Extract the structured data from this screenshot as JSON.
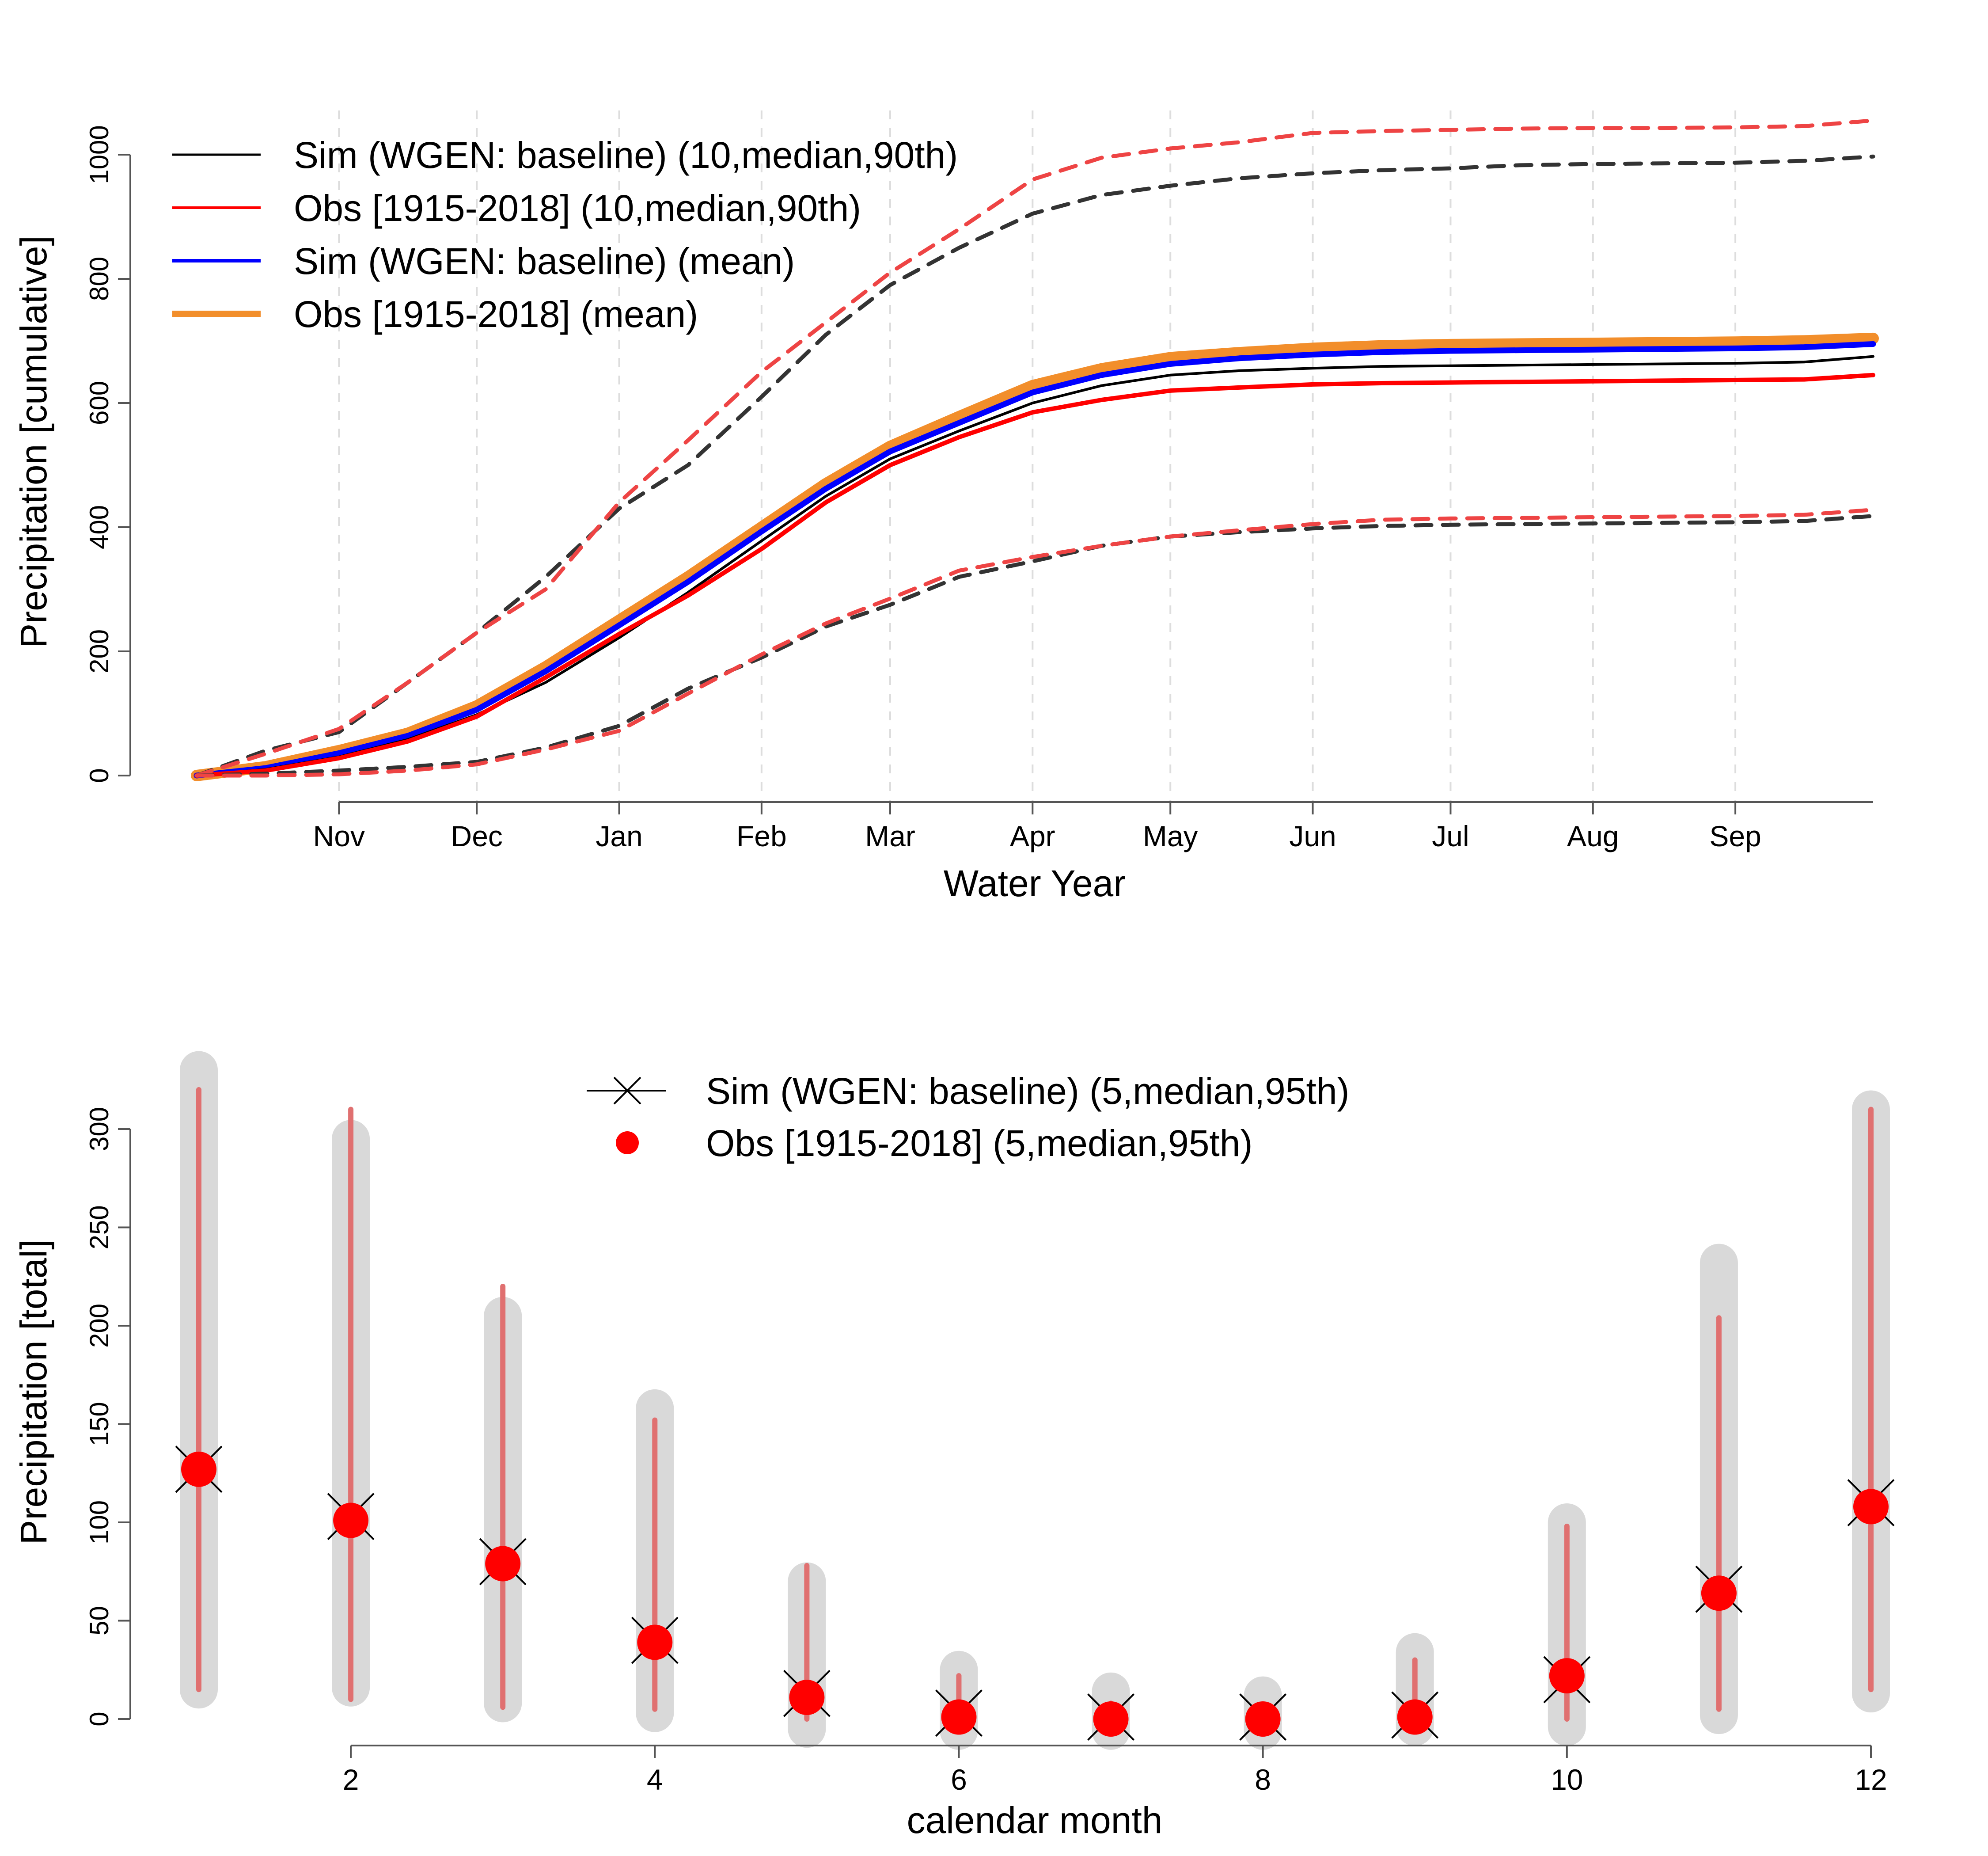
{
  "colors": {
    "sim": "#000000",
    "obs": "#ff0000",
    "sim_mean": "#0000ff",
    "obs_mean": "#f28e2b",
    "sim_dashed": "#333333",
    "obs_dashed": "#ee4444",
    "range_grey": "#d9d9d9",
    "obs_range": "#e07070",
    "grid": "#dddddd"
  },
  "chart_data": [
    {
      "type": "line",
      "xlabel": "Water Year",
      "ylabel": "Precipitation [cumulative]",
      "ylim": [
        0,
        1000
      ],
      "y_ticks": [
        0,
        200,
        400,
        600,
        800,
        1000
      ],
      "xlim": [
        0,
        365
      ],
      "x_ticks": [
        {
          "label": "Nov",
          "day": 31
        },
        {
          "label": "Dec",
          "day": 61
        },
        {
          "label": "Jan",
          "day": 92
        },
        {
          "label": "Feb",
          "day": 123
        },
        {
          "label": "Mar",
          "day": 151
        },
        {
          "label": "Apr",
          "day": 182
        },
        {
          "label": "May",
          "day": 212
        },
        {
          "label": "Jun",
          "day": 243
        },
        {
          "label": "Jul",
          "day": 273
        },
        {
          "label": "Aug",
          "day": 304
        },
        {
          "label": "Sep",
          "day": 335
        }
      ],
      "grid": "vertical dashed at month starts",
      "legend_position": "top-left",
      "legend": [
        {
          "label": "Sim (WGEN: baseline) (10,median,90th)",
          "style": "sim"
        },
        {
          "label": "Obs [1915-2018] (10,median,90th)",
          "style": "obs"
        },
        {
          "label": "Sim (WGEN: baseline) (mean)",
          "style": "sim_mean"
        },
        {
          "label": "Obs [1915-2018] (mean)",
          "style": "obs_mean"
        }
      ],
      "x": [
        0,
        15,
        31,
        46,
        61,
        76,
        92,
        107,
        123,
        137,
        151,
        166,
        182,
        197,
        212,
        227,
        243,
        258,
        273,
        288,
        304,
        319,
        335,
        350,
        365
      ],
      "series": [
        {
          "id": "obs_mean",
          "width": 26,
          "dash": false,
          "values": [
            0,
            14,
            40,
            68,
            112,
            175,
            250,
            320,
            400,
            470,
            530,
            578,
            628,
            655,
            673,
            681,
            688,
            692,
            694,
            695,
            696,
            697,
            698,
            700,
            704
          ]
        },
        {
          "id": "sim_mean",
          "width": 13,
          "dash": false,
          "values": [
            0,
            12,
            36,
            64,
            106,
            168,
            242,
            312,
            393,
            462,
            522,
            568,
            617,
            645,
            663,
            672,
            678,
            682,
            684,
            685,
            686,
            687,
            688,
            690,
            695
          ]
        },
        {
          "id": "sim_median",
          "width": 6,
          "dash": false,
          "values": [
            0,
            10,
            30,
            58,
            98,
            150,
            222,
            295,
            378,
            450,
            510,
            555,
            600,
            628,
            645,
            652,
            656,
            659,
            660,
            661,
            662,
            663,
            664,
            666,
            675
          ]
        },
        {
          "id": "obs_median",
          "width": 10,
          "dash": false,
          "values": [
            0,
            8,
            28,
            55,
            95,
            158,
            228,
            290,
            365,
            440,
            500,
            545,
            585,
            605,
            620,
            625,
            630,
            632,
            633,
            634,
            635,
            636,
            637,
            638,
            645
          ]
        },
        {
          "id": "sim_p90",
          "width": 9,
          "dash": true,
          "values": [
            0,
            40,
            70,
            150,
            230,
            320,
            430,
            500,
            610,
            710,
            790,
            850,
            905,
            935,
            950,
            962,
            970,
            975,
            978,
            983,
            985,
            986,
            987,
            990,
            997
          ]
        },
        {
          "id": "obs_p90",
          "width": 9,
          "dash": true,
          "values": [
            0,
            35,
            75,
            150,
            230,
            300,
            440,
            540,
            650,
            730,
            810,
            880,
            960,
            995,
            1010,
            1020,
            1035,
            1038,
            1040,
            1042,
            1043,
            1043,
            1044,
            1046,
            1055
          ]
        },
        {
          "id": "sim_p10",
          "width": 9,
          "dash": true,
          "values": [
            0,
            3,
            8,
            14,
            22,
            45,
            80,
            140,
            190,
            240,
            275,
            320,
            345,
            370,
            385,
            392,
            398,
            402,
            404,
            405,
            406,
            407,
            408,
            410,
            418
          ]
        },
        {
          "id": "obs_p10",
          "width": 9,
          "dash": true,
          "values": [
            0,
            0,
            2,
            8,
            18,
            42,
            72,
            132,
            195,
            245,
            285,
            330,
            352,
            370,
            385,
            395,
            405,
            412,
            414,
            415,
            416,
            417,
            418,
            420,
            428
          ]
        }
      ]
    },
    {
      "type": "range_dot",
      "xlabel": "calendar month",
      "ylabel": "Precipitation [total]",
      "xlim": [
        1,
        12
      ],
      "ylim": [
        0,
        320
      ],
      "x_ticks": [
        2,
        4,
        6,
        8,
        10,
        12
      ],
      "y_ticks": [
        0,
        50,
        100,
        150,
        200,
        250,
        300
      ],
      "legend_position": "top-center",
      "legend": [
        {
          "label": "Sim (WGEN: baseline) (5,median,95th)",
          "style": "sim"
        },
        {
          "label": "Obs [1915-2018] (5,median,95th)",
          "style": "obs"
        }
      ],
      "months": [
        1,
        2,
        3,
        4,
        5,
        6,
        7,
        8,
        9,
        10,
        11,
        12
      ],
      "sim_p5": [
        15,
        16,
        8,
        3,
        -5,
        -6,
        -6,
        -6,
        -4,
        -4,
        2,
        13
      ],
      "sim_p95": [
        330,
        295,
        205,
        158,
        70,
        25,
        14,
        12,
        34,
        100,
        232,
        310
      ],
      "sim_median": [
        127,
        103,
        80,
        40,
        13,
        3,
        1,
        1,
        2,
        20,
        66,
        110
      ],
      "obs_p5": [
        15,
        10,
        6,
        5,
        0,
        0,
        0,
        0,
        0,
        0,
        5,
        15
      ],
      "obs_p95": [
        320,
        310,
        220,
        152,
        78,
        22,
        8,
        6,
        30,
        98,
        204,
        310
      ],
      "obs_median": [
        127,
        101,
        79,
        39,
        11,
        1,
        0,
        0,
        1,
        22,
        64,
        108
      ]
    }
  ]
}
